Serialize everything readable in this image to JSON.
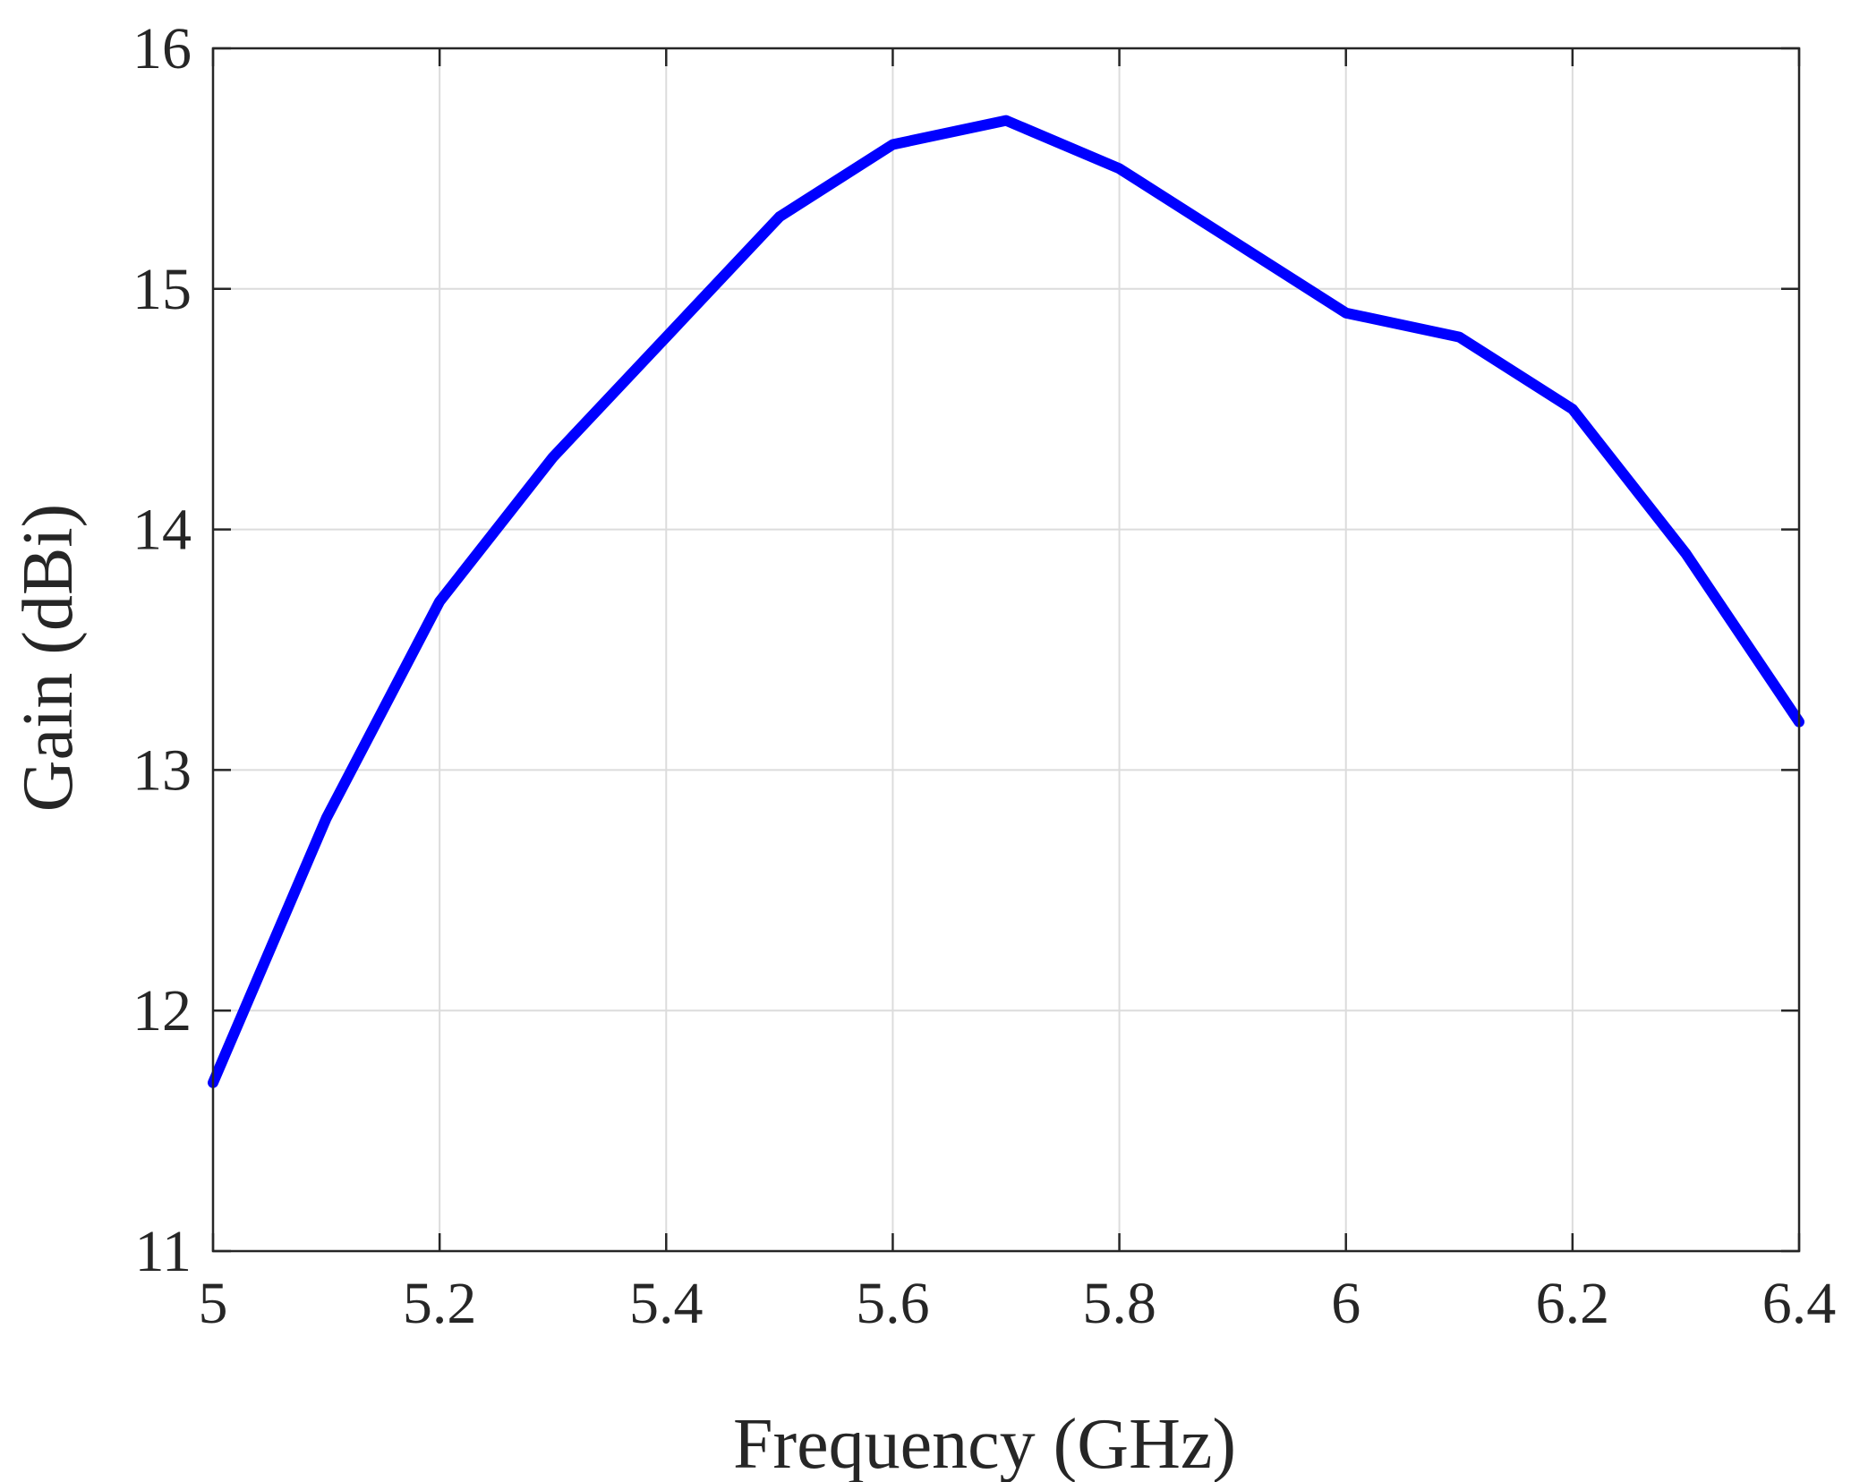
{
  "chart_data": {
    "type": "line",
    "title": "",
    "xlabel": "Frequency (GHz)",
    "ylabel": "Gain (dBi)",
    "xlim": [
      5,
      6.4
    ],
    "ylim": [
      11,
      16
    ],
    "xticks": [
      5,
      5.2,
      5.4,
      5.6,
      5.8,
      6,
      6.2,
      6.4
    ],
    "xtick_labels": [
      "5",
      "5.2",
      "5.4",
      "5.6",
      "5.8",
      "6",
      "6.2",
      "6.4"
    ],
    "yticks": [
      11,
      12,
      13,
      14,
      15,
      16
    ],
    "ytick_labels": [
      "11",
      "12",
      "13",
      "14",
      "15",
      "16"
    ],
    "grid": true,
    "legend": "none",
    "series": [
      {
        "color": "#0000ff",
        "x": [
          5.0,
          5.1,
          5.2,
          5.3,
          5.4,
          5.5,
          5.6,
          5.7,
          5.8,
          5.9,
          6.0,
          6.1,
          6.2,
          6.3,
          6.4
        ],
        "y": [
          11.7,
          12.8,
          13.7,
          14.3,
          14.8,
          15.3,
          15.6,
          15.7,
          15.5,
          15.2,
          14.9,
          14.8,
          14.5,
          13.9,
          13.2
        ]
      }
    ],
    "colors": {
      "axis": "#262626",
      "grid": "#dcdcdc",
      "background": "#ffffff"
    }
  }
}
